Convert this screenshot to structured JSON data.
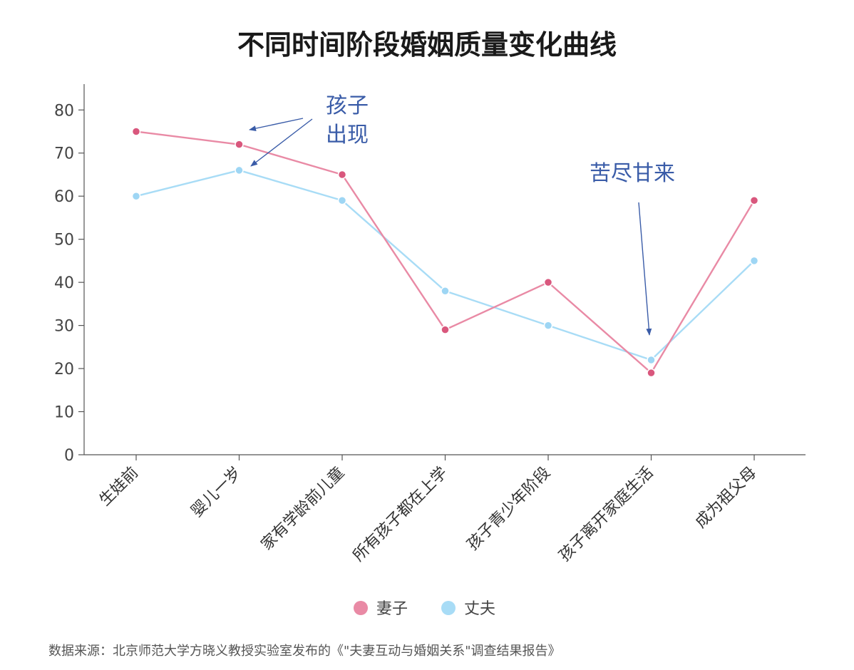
{
  "chart_data": {
    "type": "line",
    "title": "不同时间阶段婚姻质量变化曲线",
    "categories": [
      "生娃前",
      "婴儿一岁",
      "家有学龄前儿童",
      "所有孩子都在上学",
      "孩子青少年阶段",
      "孩子离开家庭生活",
      "成为祖父母"
    ],
    "yticks": [
      0,
      10,
      20,
      30,
      40,
      50,
      60,
      70,
      80
    ],
    "ylim": [
      0,
      86
    ],
    "grid": false,
    "legend_position": "bottom-center",
    "series": [
      {
        "name": "妻子",
        "color": "#e98aa5",
        "marker_color": "#d9577d",
        "values": [
          75,
          72,
          65,
          29,
          40,
          19,
          59
        ]
      },
      {
        "name": "丈夫",
        "color": "#a8dcf6",
        "marker_color": "#9ed6f4",
        "values": [
          60,
          66,
          59,
          38,
          30,
          22,
          45
        ]
      }
    ],
    "annotations": [
      {
        "lines": [
          "孩子",
          "出现"
        ]
      },
      {
        "lines": [
          "苦尽甘来"
        ]
      }
    ],
    "source": "数据来源：北京师范大学方晓义教授实验室发布的《\"夫妻互动与婚姻关系\"调查结果报告》"
  }
}
